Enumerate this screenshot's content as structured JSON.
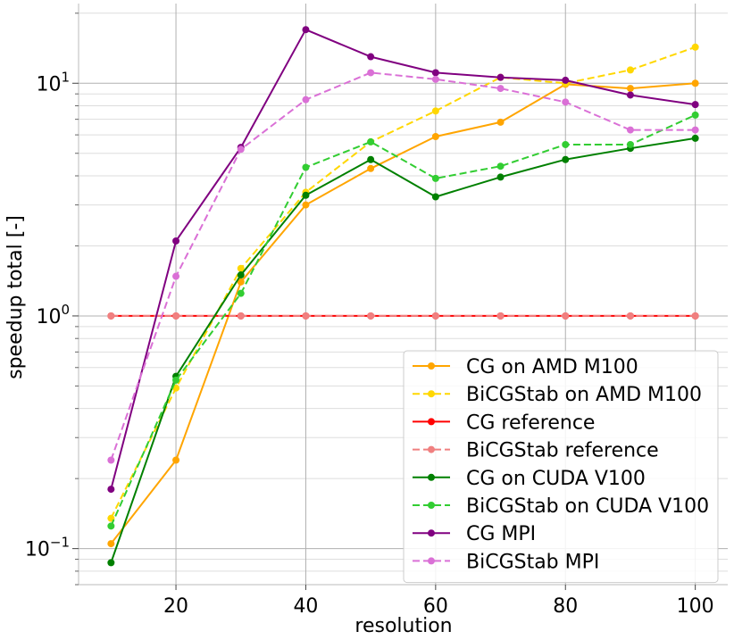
{
  "chart_data": {
    "type": "line",
    "xlabel": "resolution",
    "ylabel": "speedup total [-]",
    "y_scale": "log",
    "xlim": [
      5,
      105
    ],
    "ylim": [
      0.07,
      22
    ],
    "grid": true,
    "legend_position": "bottom-right",
    "x_ticks": [
      {
        "value": 20,
        "label": "20"
      },
      {
        "value": 40,
        "label": "40"
      },
      {
        "value": 60,
        "label": "60"
      },
      {
        "value": 80,
        "label": "80"
      },
      {
        "value": 100,
        "label": "100"
      }
    ],
    "y_ticks": [
      {
        "value": 0.1,
        "base": "10",
        "exp": "−1"
      },
      {
        "value": 1,
        "base": "10",
        "exp": "0"
      },
      {
        "value": 10,
        "base": "10",
        "exp": "1"
      }
    ],
    "x": [
      10,
      20,
      30,
      40,
      50,
      60,
      70,
      80,
      90,
      100
    ],
    "series": [
      {
        "name": "CG on AMD M100",
        "color": "#FFA500",
        "dash": "solid",
        "values": [
          0.105,
          0.24,
          1.4,
          3.0,
          4.3,
          5.9,
          6.8,
          9.9,
          9.5,
          10.0
        ]
      },
      {
        "name": "BiCGStab on AMD M100",
        "color": "#FFD700",
        "dash": "dashed",
        "values": [
          0.135,
          0.49,
          1.6,
          3.4,
          5.6,
          7.6,
          10.6,
          10.0,
          11.4,
          14.3
        ]
      },
      {
        "name": "CG reference",
        "color": "#FF0000",
        "dash": "solid",
        "values": [
          1,
          1,
          1,
          1,
          1,
          1,
          1,
          1,
          1,
          1
        ]
      },
      {
        "name": "BiCGStab reference",
        "color": "#F08080",
        "dash": "dashed",
        "values": [
          1,
          1,
          1,
          1,
          1,
          1,
          1,
          1,
          1,
          1
        ]
      },
      {
        "name": "CG on CUDA V100",
        "color": "#008000",
        "dash": "solid",
        "values": [
          0.087,
          0.55,
          1.5,
          3.3,
          4.7,
          3.25,
          3.95,
          4.7,
          5.25,
          5.8
        ]
      },
      {
        "name": "BiCGStab on CUDA V100",
        "color": "#32CD32",
        "dash": "dashed",
        "values": [
          0.125,
          0.53,
          1.25,
          4.35,
          5.6,
          3.9,
          4.4,
          5.45,
          5.45,
          7.3
        ]
      },
      {
        "name": "CG MPI",
        "color": "#800080",
        "dash": "solid",
        "values": [
          0.18,
          2.1,
          5.3,
          17.0,
          13.0,
          11.1,
          10.6,
          10.3,
          8.9,
          8.1
        ]
      },
      {
        "name": "BiCGStab MPI",
        "color": "#DA70D6",
        "dash": "dashed",
        "values": [
          0.24,
          1.48,
          5.2,
          8.5,
          11.1,
          10.4,
          9.5,
          8.3,
          6.3,
          6.3
        ]
      }
    ]
  }
}
